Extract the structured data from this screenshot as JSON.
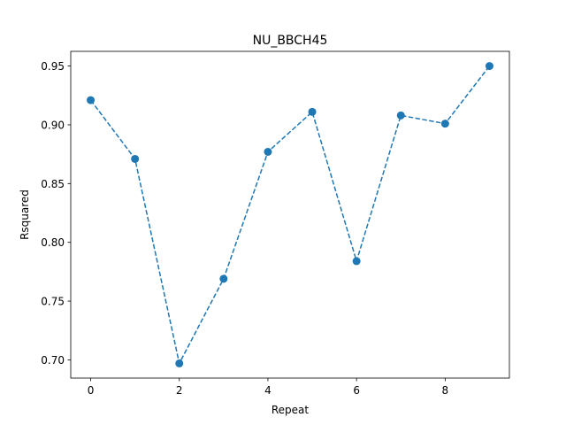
{
  "chart_data": {
    "type": "line",
    "title": "NU_BBCH45",
    "xlabel": "Repeat",
    "ylabel": "Rsquared",
    "x": [
      0,
      1,
      2,
      3,
      4,
      5,
      6,
      7,
      8,
      9
    ],
    "series": [
      {
        "values": [
          0.921,
          0.871,
          0.697,
          0.769,
          0.877,
          0.911,
          0.784,
          0.908,
          0.901,
          0.95
        ],
        "color": "#1f77b4",
        "line_style": "dashed",
        "marker": "circle"
      }
    ],
    "xlim": [
      -0.45,
      9.45
    ],
    "ylim": [
      0.6845,
      0.9625
    ],
    "xticks": [
      0,
      2,
      4,
      6,
      8
    ],
    "yticks": [
      0.7,
      0.75,
      0.8,
      0.85,
      0.9,
      0.95
    ],
    "xtick_labels": [
      "0",
      "2",
      "4",
      "6",
      "8"
    ],
    "ytick_labels": [
      "0.70",
      "0.75",
      "0.80",
      "0.85",
      "0.90",
      "0.95"
    ],
    "grid": false,
    "legend": "none"
  }
}
